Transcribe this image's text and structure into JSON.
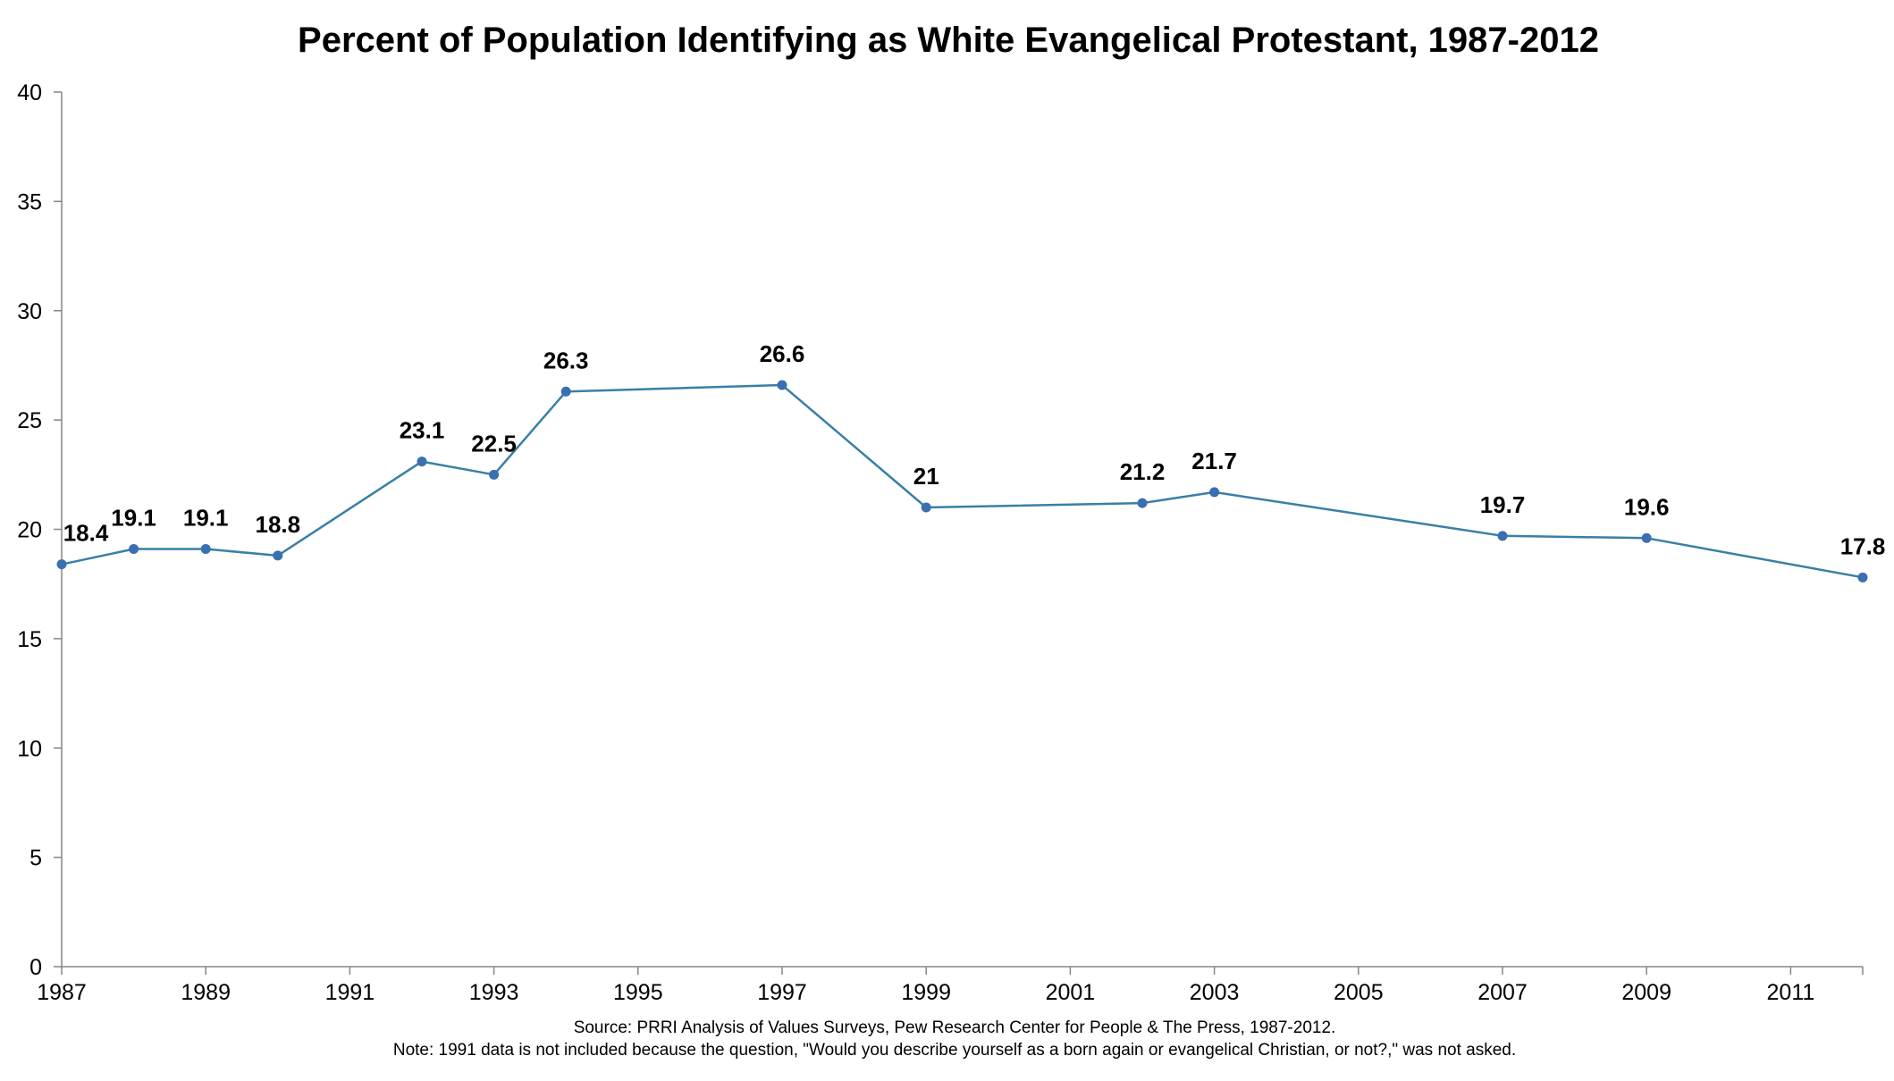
{
  "chart_data": {
    "type": "line",
    "title": "Percent of Population Identifying as White Evangelical Protestant, 1987-2012",
    "xlabel": "",
    "ylabel": "",
    "xlim": [
      1987,
      2012
    ],
    "ylim": [
      0,
      40
    ],
    "x_ticks": [
      "1987",
      "1989",
      "1991",
      "1993",
      "1995",
      "1997",
      "1999",
      "2001",
      "2003",
      "2005",
      "2007",
      "2009",
      "2011"
    ],
    "y_ticks": [
      "0",
      "5",
      "10",
      "15",
      "20",
      "25",
      "30",
      "35",
      "40"
    ],
    "grid": false,
    "legend": "none",
    "series": [
      {
        "color": "#3a7fa6",
        "marker_color": "#3a6fb0",
        "x": [
          1987,
          1988,
          1989,
          1990,
          1992,
          1993,
          1994,
          1997,
          1999,
          2002,
          2003,
          2007,
          2009,
          2012
        ],
        "values": [
          18.4,
          19.1,
          19.1,
          18.8,
          23.1,
          22.5,
          26.3,
          26.6,
          21,
          21.2,
          21.7,
          19.7,
          19.6,
          17.8
        ],
        "labels": [
          "18.4",
          "19.1",
          "19.1",
          "18.8",
          "23.1",
          "22.5",
          "26.3",
          "26.6",
          "21",
          "21.2",
          "21.7",
          "19.7",
          "19.6",
          "17.8"
        ]
      }
    ]
  },
  "footer": {
    "source": "Source: PRRI Analysis of Values Surveys, Pew Research Center for People & The Press, 1987-2012.",
    "note": "Note: 1991 data is not included because the question, \"Would you describe yourself as a born again or evangelical Christian, or not?,\" was not asked."
  }
}
